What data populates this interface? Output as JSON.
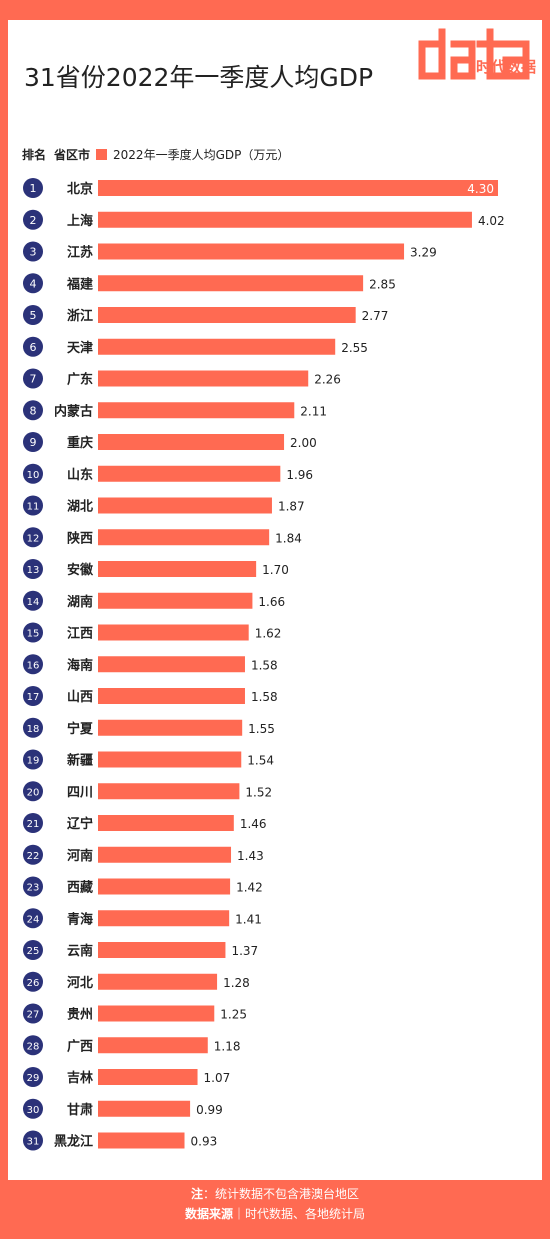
{
  "title": "31省份2022年一季度人均GDP",
  "logo": {
    "word": "data",
    "text": "时代数据"
  },
  "legend": {
    "rank_label": "排名",
    "province_label": "省区市",
    "series_label": "2022年一季度人均GDP（万元）"
  },
  "colors": {
    "bar": "#FF6A52",
    "rank_circle": "#2B3279",
    "frame": "#FF6A52"
  },
  "chart_data": {
    "type": "bar",
    "orientation": "horizontal",
    "xlabel": "",
    "ylabel": "",
    "series": [
      {
        "name": "2022年一季度人均GDP（万元）"
      }
    ],
    "ranks": [
      1,
      2,
      3,
      4,
      5,
      6,
      7,
      8,
      9,
      10,
      11,
      12,
      13,
      14,
      15,
      16,
      17,
      18,
      19,
      20,
      21,
      22,
      23,
      24,
      25,
      26,
      27,
      28,
      29,
      30,
      31
    ],
    "categories": [
      "北京",
      "上海",
      "江苏",
      "福建",
      "浙江",
      "天津",
      "广东",
      "内蒙古",
      "重庆",
      "山东",
      "湖北",
      "陕西",
      "安徽",
      "湖南",
      "江西",
      "海南",
      "山西",
      "宁夏",
      "新疆",
      "四川",
      "辽宁",
      "河南",
      "西藏",
      "青海",
      "云南",
      "河北",
      "贵州",
      "广西",
      "吉林",
      "甘肃",
      "黑龙江"
    ],
    "values": [
      4.3,
      4.02,
      3.29,
      2.85,
      2.77,
      2.55,
      2.26,
      2.11,
      2.0,
      1.96,
      1.87,
      1.84,
      1.7,
      1.66,
      1.62,
      1.58,
      1.58,
      1.55,
      1.54,
      1.52,
      1.46,
      1.43,
      1.42,
      1.41,
      1.37,
      1.28,
      1.25,
      1.18,
      1.07,
      0.99,
      0.93
    ],
    "labels": [
      "4.30",
      "4.02",
      "3.29",
      "2.85",
      "2.77",
      "2.55",
      "2.26",
      "2.11",
      "2.00",
      "1.96",
      "1.87",
      "1.84",
      "1.70",
      "1.66",
      "1.62",
      "1.58",
      "1.58",
      "1.55",
      "1.54",
      "1.52",
      "1.46",
      "1.43",
      "1.42",
      "1.41",
      "1.37",
      "1.28",
      "1.25",
      "1.18",
      "1.07",
      "0.99",
      "0.93"
    ]
  },
  "footer": {
    "note_label": "注",
    "note_text": "：统计数据不包含港澳台地区",
    "source_label": "数据来源",
    "source_text": "｜时代数据、各地统计局"
  }
}
